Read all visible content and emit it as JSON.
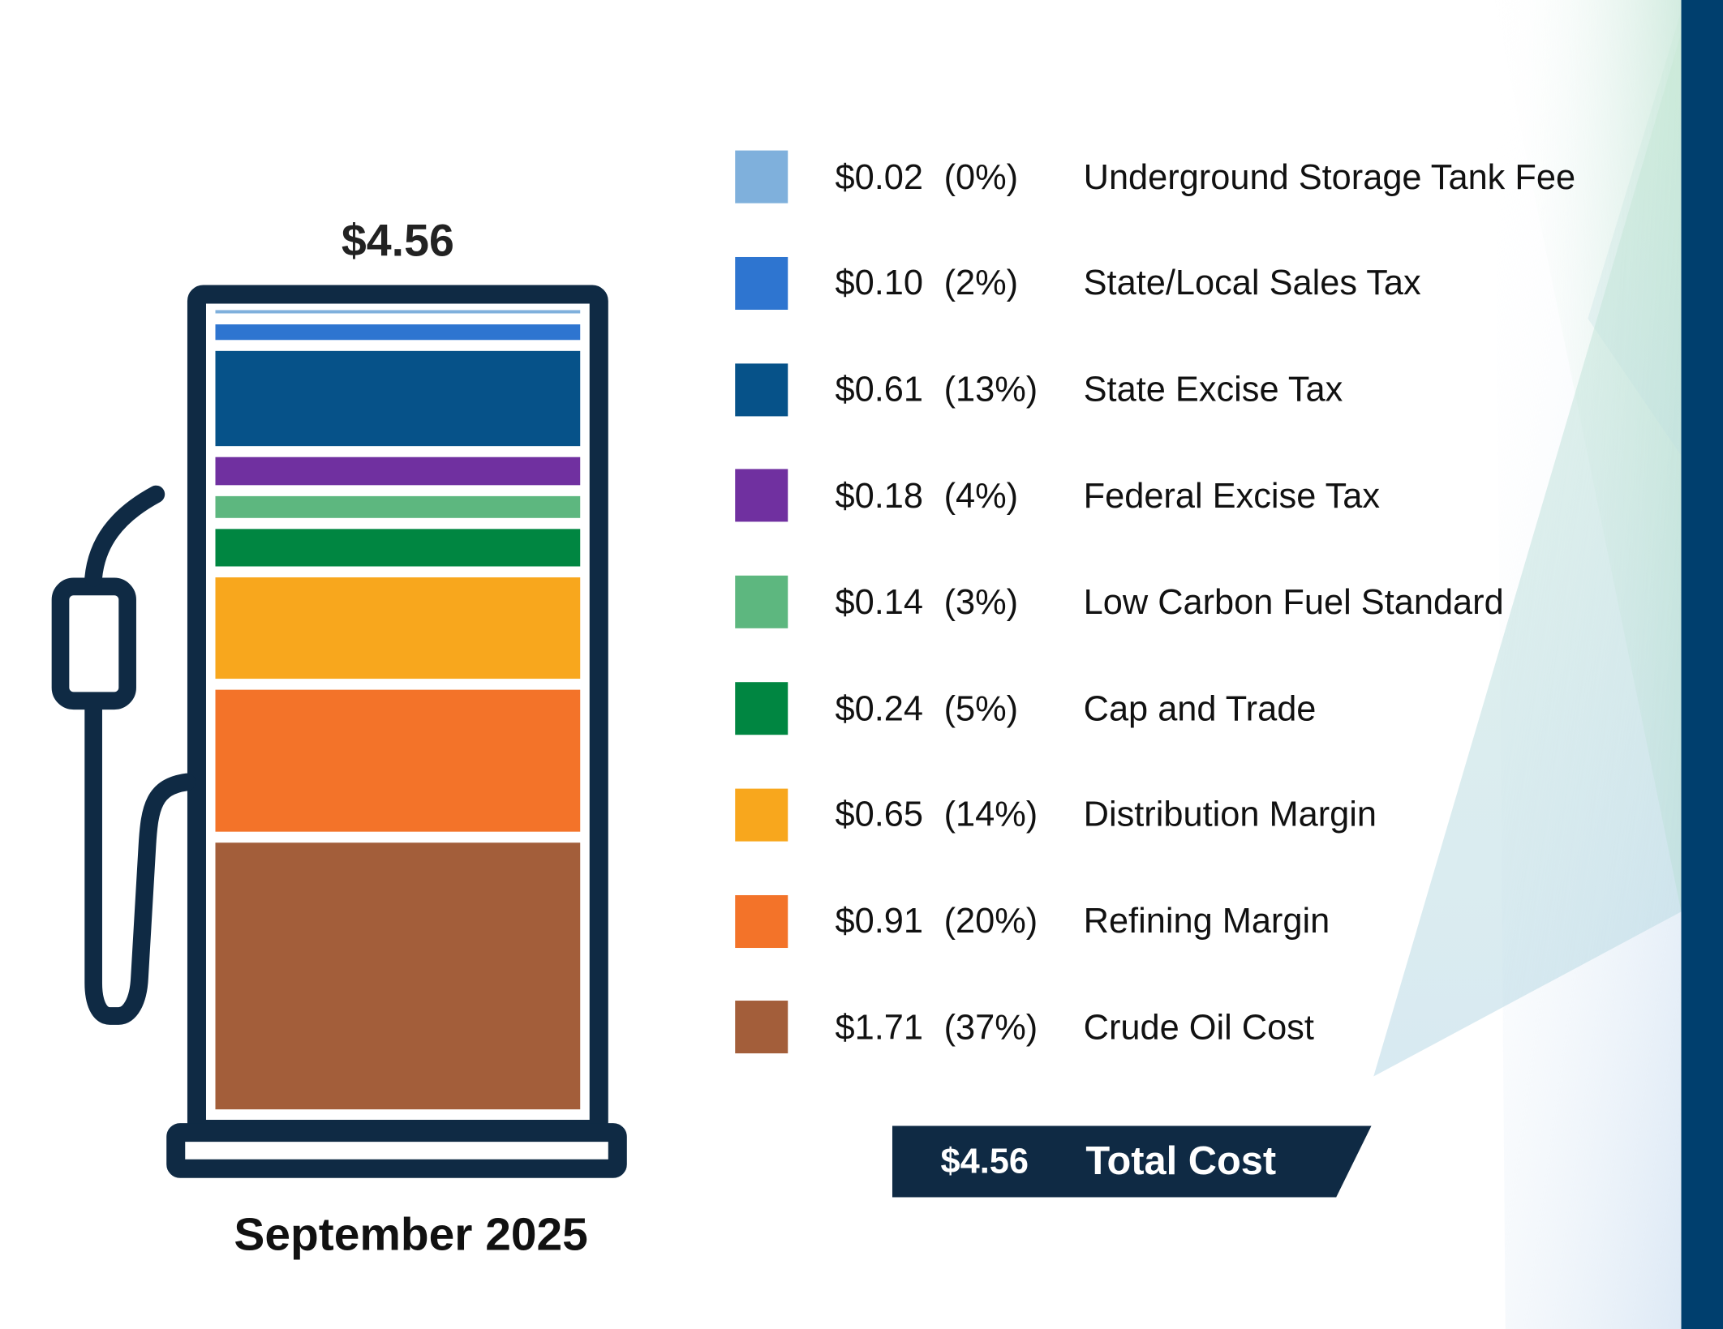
{
  "chart_data": {
    "type": "bar",
    "stacked": true,
    "total_label": "$4.56",
    "period": "September 2025",
    "categories": [
      "Underground Storage Tank Fee",
      "State/Local Sales Tax",
      "State Excise Tax",
      "Federal Excise Tax",
      "Low Carbon Fuel Standard",
      "Cap and Trade",
      "Distribution Margin",
      "Refining Margin",
      "Crude Oil Cost"
    ],
    "values": [
      0.02,
      0.1,
      0.61,
      0.18,
      0.14,
      0.24,
      0.65,
      0.91,
      1.71
    ],
    "value_labels": [
      "$0.02",
      "$0.10",
      "$0.61",
      "$0.18",
      "$0.14",
      "$0.24",
      "$0.65",
      "$0.91",
      "$1.71"
    ],
    "percent_labels": [
      "(0%)",
      "(2%)",
      "(13%)",
      "(4%)",
      "(3%)",
      "(5%)",
      "(14%)",
      "(20%)",
      "(37%)"
    ],
    "colors": [
      "#7fb0dc",
      "#2e75d0",
      "#065289",
      "#7030a0",
      "#5db77f",
      "#008641",
      "#f8a71d",
      "#f37329",
      "#a35e3a"
    ],
    "legend_placement": "right",
    "total": {
      "value": "$4.56",
      "label": "Total Cost"
    }
  },
  "theme": {
    "frame": "#0f2a44",
    "accent_bar": "#003f6e"
  }
}
